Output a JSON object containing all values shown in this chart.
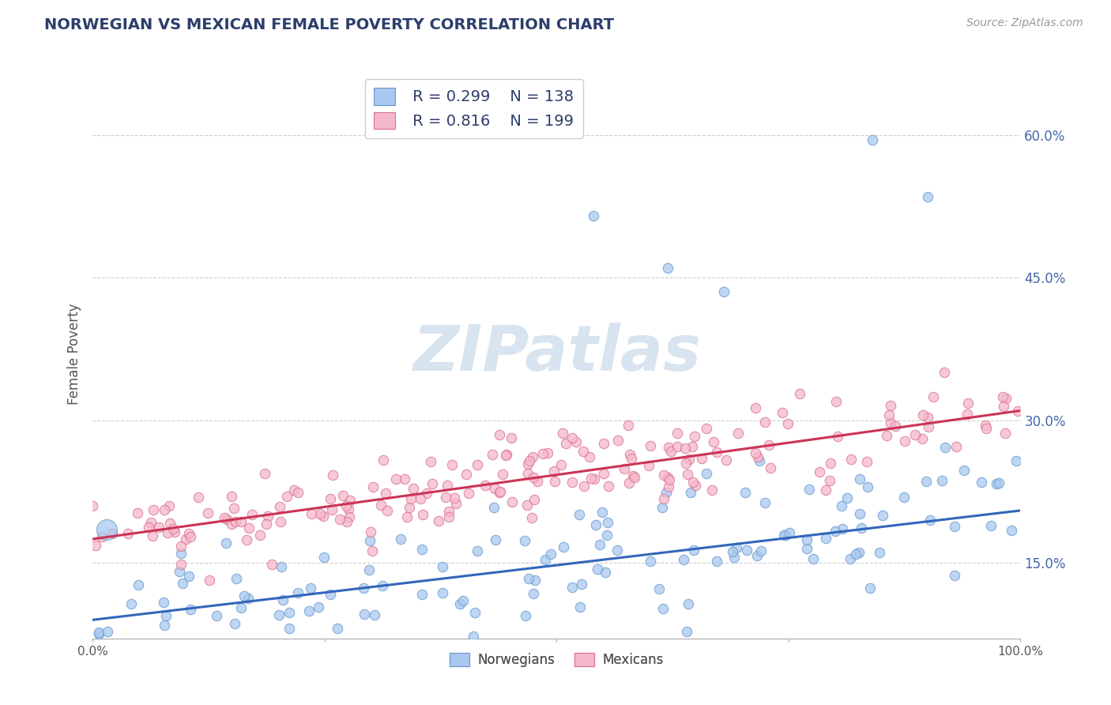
{
  "title": "NORWEGIAN VS MEXICAN FEMALE POVERTY CORRELATION CHART",
  "source": "Source: ZipAtlas.com",
  "ylabel": "Female Poverty",
  "xlim": [
    0,
    1
  ],
  "ylim": [
    0.07,
    0.67
  ],
  "yticks": [
    0.15,
    0.3,
    0.45,
    0.6
  ],
  "ytick_labels": [
    "15.0%",
    "30.0%",
    "45.0%",
    "60.0%"
  ],
  "xtick_labels_left": "0.0%",
  "xtick_labels_right": "100.0%",
  "norwegian_R": 0.299,
  "norwegian_N": 138,
  "mexican_R": 0.816,
  "mexican_N": 199,
  "norwegian_color": "#a8c8f0",
  "norwegian_edge": "#6699cc",
  "mexican_color": "#f5b8cb",
  "mexican_edge": "#d9708a",
  "norwegian_line_color": "#3366bb",
  "mexican_line_color": "#cc3355",
  "background_color": "#ffffff",
  "grid_color": "#cccccc",
  "watermark_color": "#d8e4f0",
  "title_color": "#2c3e6b",
  "axis_label_color": "#555555",
  "tick_label_color": "#4466aa",
  "legend_label_norwegian": "Norwegians",
  "legend_label_mexican": "Mexicans",
  "norw_line_intercept": 0.09,
  "norw_line_slope": 0.115,
  "mex_line_intercept": 0.175,
  "mex_line_slope": 0.135
}
